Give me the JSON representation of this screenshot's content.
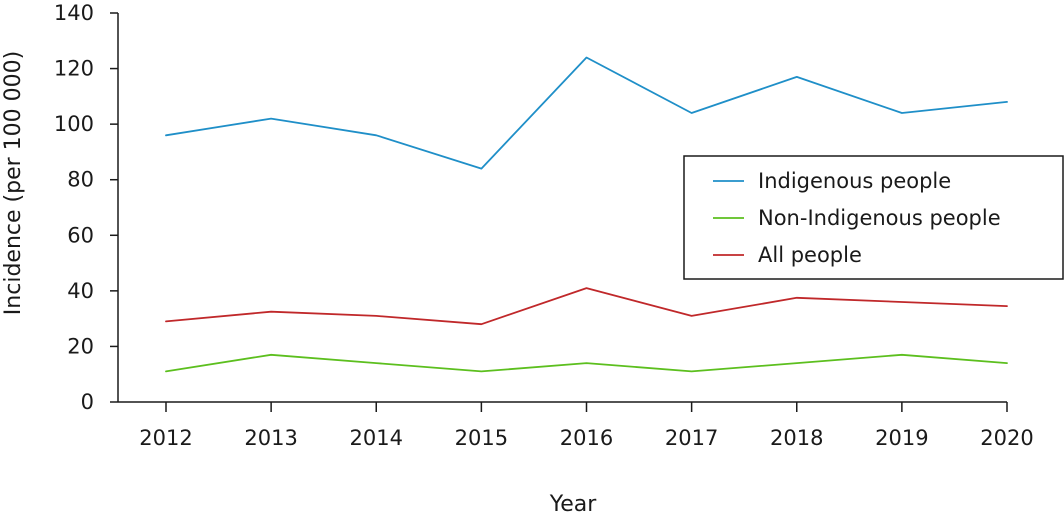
{
  "chart_data": {
    "type": "line",
    "title": "",
    "xlabel": "Year",
    "ylabel": "Incidence (per 100 000)",
    "x": [
      "2012",
      "2013",
      "2014",
      "2015",
      "2016",
      "2017",
      "2018",
      "2019",
      "2020"
    ],
    "ylim": [
      0,
      140
    ],
    "yticks": [
      0,
      20,
      40,
      60,
      80,
      100,
      120,
      140
    ],
    "grid": false,
    "legend_position": "center-right",
    "series": [
      {
        "name": "Indigenous people",
        "color": "#1f8fc8",
        "values": [
          96,
          102,
          96,
          84,
          124,
          104,
          117,
          104,
          108
        ]
      },
      {
        "name": "Non-Indigenous people",
        "color": "#5cbf1e",
        "values": [
          11,
          17,
          14,
          11,
          14,
          11,
          14,
          17,
          14
        ]
      },
      {
        "name": "All people",
        "color": "#c0282a",
        "values": [
          29,
          32.5,
          31,
          28,
          41,
          31,
          37.5,
          36,
          34.5
        ]
      }
    ]
  }
}
